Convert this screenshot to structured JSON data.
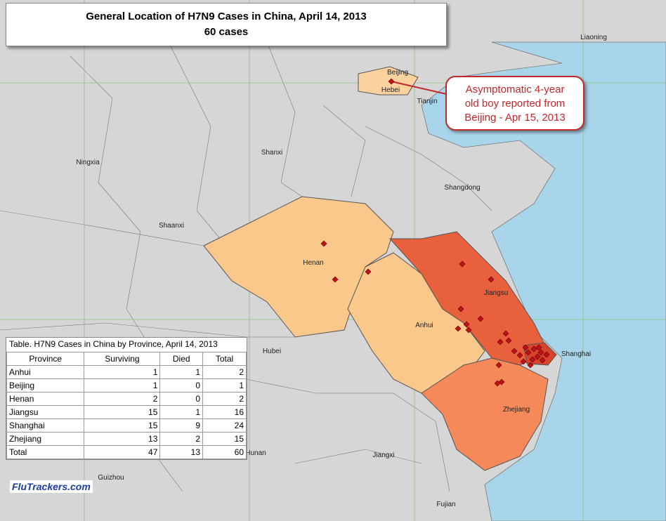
{
  "header": {
    "title": "General Location of  H7N9 Cases in China, April 14, 2013",
    "subtitle": "60 cases"
  },
  "callout": {
    "lines": [
      "Asymptomatic 4-year",
      "old boy reported from",
      "Beijing - Apr 15, 2013"
    ]
  },
  "labels": [
    "Liaoning",
    "Beijing",
    "Hebei",
    "Tianjin",
    "Ningxia",
    "Shanxi",
    "Shangdong",
    "Shaanxi",
    "Henan",
    "Jiangsu",
    "Anhui",
    "Hubei",
    "Shanghai",
    "Zhejiang",
    "Hunan",
    "Jiangxi",
    "Guizhou",
    "Fujian"
  ],
  "table": {
    "title": "Table. H7N9  Cases in China by Province, April 14, 2013",
    "columns": [
      "Province",
      "Surviving",
      "Died",
      "Total"
    ],
    "rows": [
      [
        "Anhui",
        1,
        1,
        2
      ],
      [
        "Beijing",
        1,
        0,
        1
      ],
      [
        "Henan",
        2,
        0,
        2
      ],
      [
        "Jiangsu",
        15,
        1,
        16
      ],
      [
        "Shanghai",
        15,
        9,
        24
      ],
      [
        "Zhejiang",
        13,
        2,
        15
      ],
      [
        "Total",
        47,
        13,
        60
      ]
    ]
  },
  "brand": "FluTrackers.com"
}
